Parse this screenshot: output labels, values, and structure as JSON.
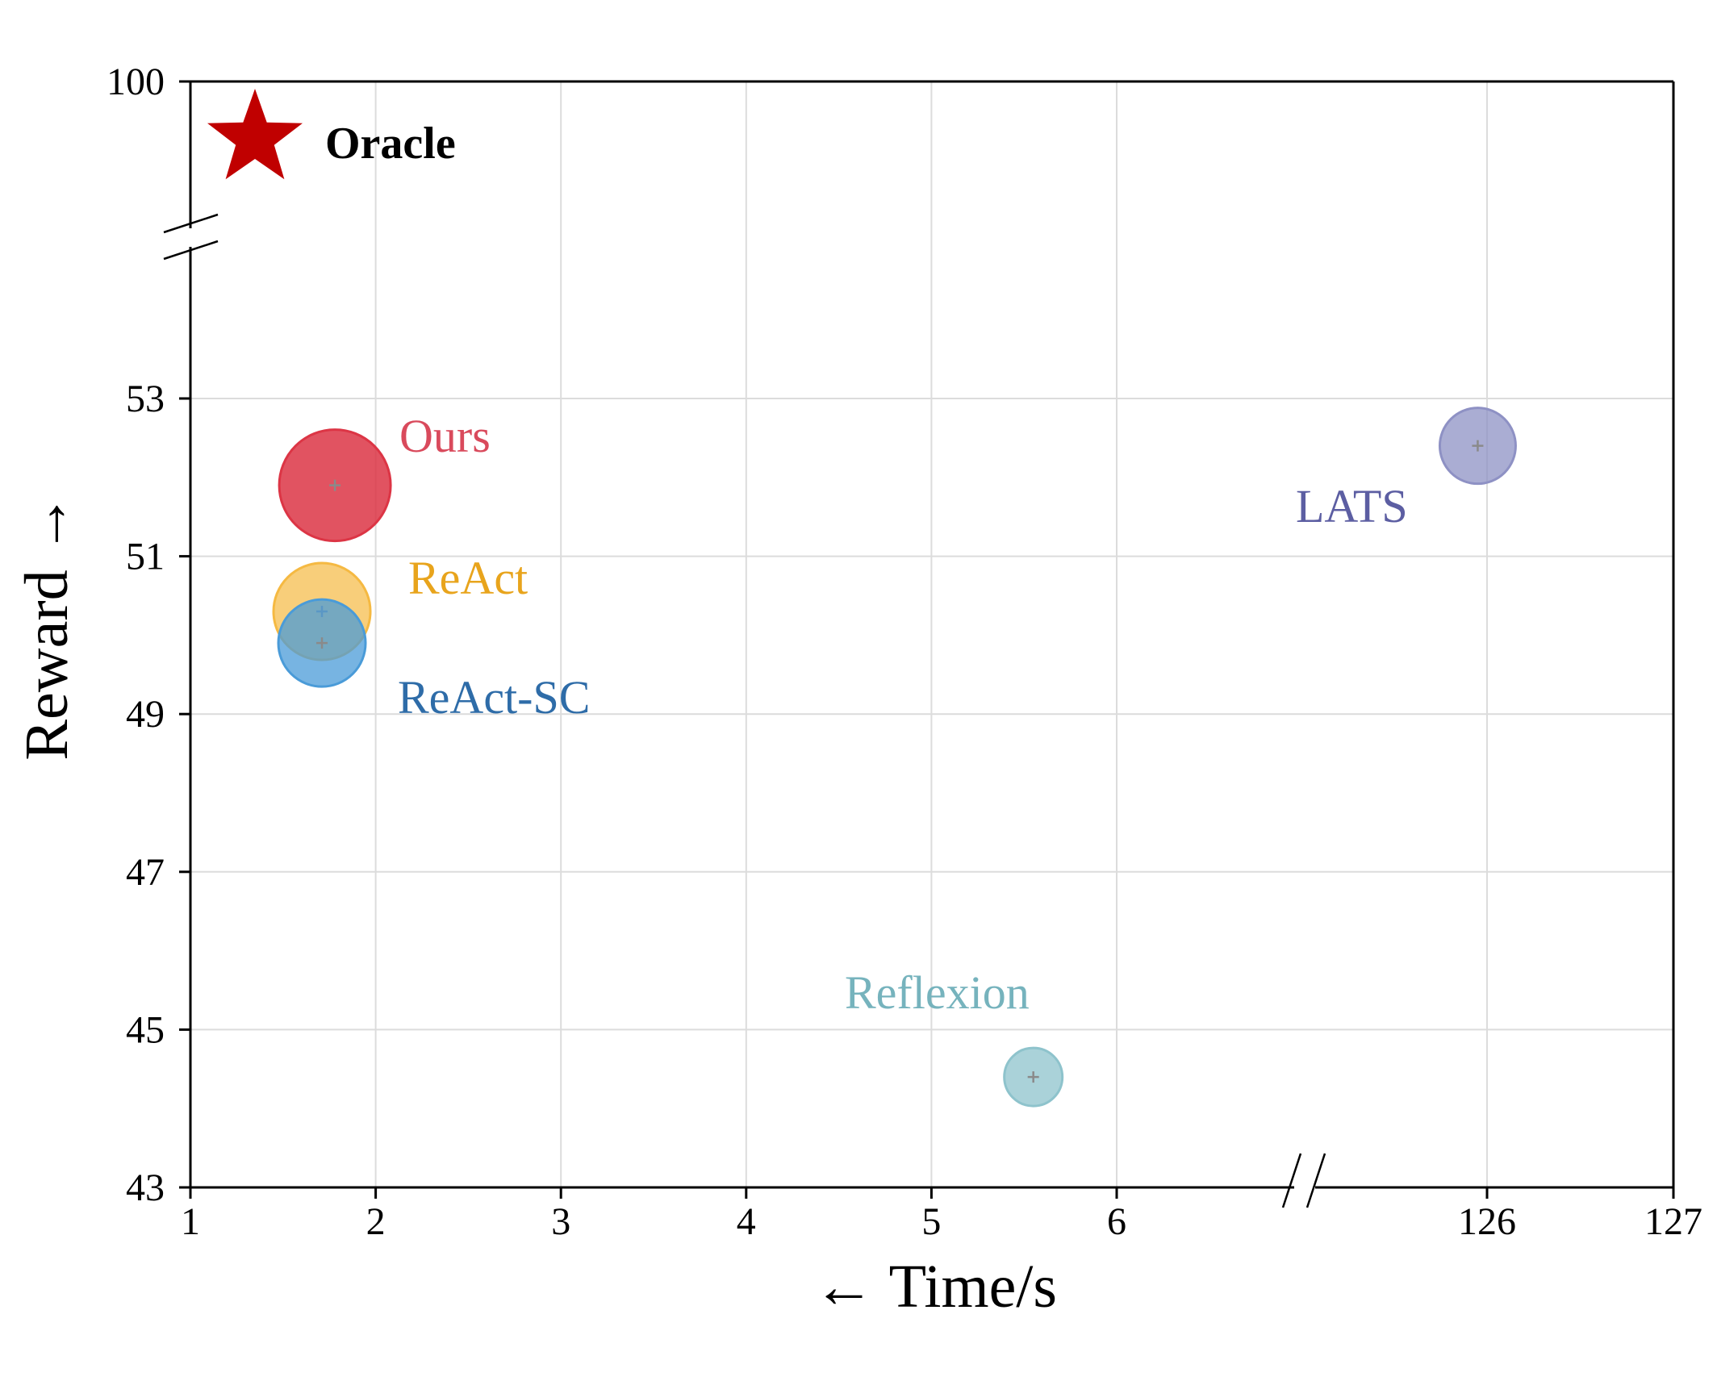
{
  "chart_data": {
    "type": "scatter",
    "title": "",
    "xlabel": "← Time/s",
    "ylabel": "Reward →",
    "x_ticks": [
      "1",
      "2",
      "3",
      "4",
      "5",
      "6",
      "126",
      "127"
    ],
    "y_ticks": [
      "43",
      "45",
      "47",
      "49",
      "51",
      "53",
      "100"
    ],
    "x_axis_break": "between 6 and 126",
    "y_axis_break": "between 53 and 100",
    "grid": true,
    "series": [
      {
        "name": "Ours",
        "x": 1.78,
        "y": 51.9,
        "color": "#dc3545"
      },
      {
        "name": "ReAct",
        "x": 1.71,
        "y": 50.3,
        "color": "#f5b942"
      },
      {
        "name": "ReAct-SC",
        "x": 1.71,
        "y": 49.9,
        "color": "#4a9bd8"
      },
      {
        "name": "Reflexion",
        "x": 5.55,
        "y": 44.4,
        "color": "#8ec3cc"
      },
      {
        "name": "LATS",
        "x": 125.95,
        "y": 52.4,
        "color": "#8e91c4"
      }
    ],
    "reference": {
      "name": "Oracle",
      "x": 1.35,
      "y": 100,
      "color": "#c00000",
      "marker": "star"
    },
    "label_colors": {
      "Ours": "#d94a5c",
      "ReAct": "#e8a41c",
      "ReAct-SC": "#2e6ca8",
      "Reflexion": "#76b3bd",
      "LATS": "#5c5ea2"
    }
  }
}
